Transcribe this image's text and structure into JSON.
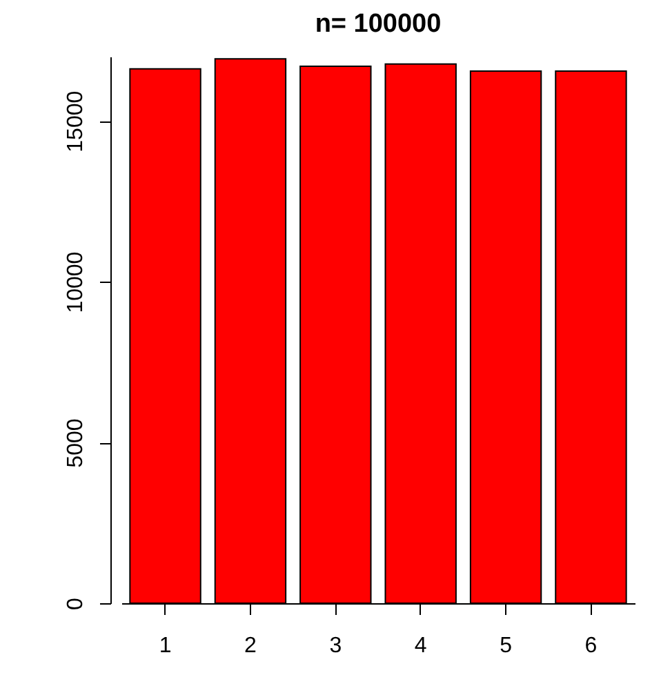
{
  "chart_data": {
    "type": "bar",
    "title": "n= 100000",
    "categories": [
      "1",
      "2",
      "3",
      "4",
      "5",
      "6"
    ],
    "values": [
      16620,
      16930,
      16700,
      16770,
      16550,
      16550
    ],
    "color": "#ff0000",
    "ylim": [
      0,
      17000
    ],
    "yticks": [
      0,
      5000,
      10000,
      15000
    ],
    "grid": false
  }
}
